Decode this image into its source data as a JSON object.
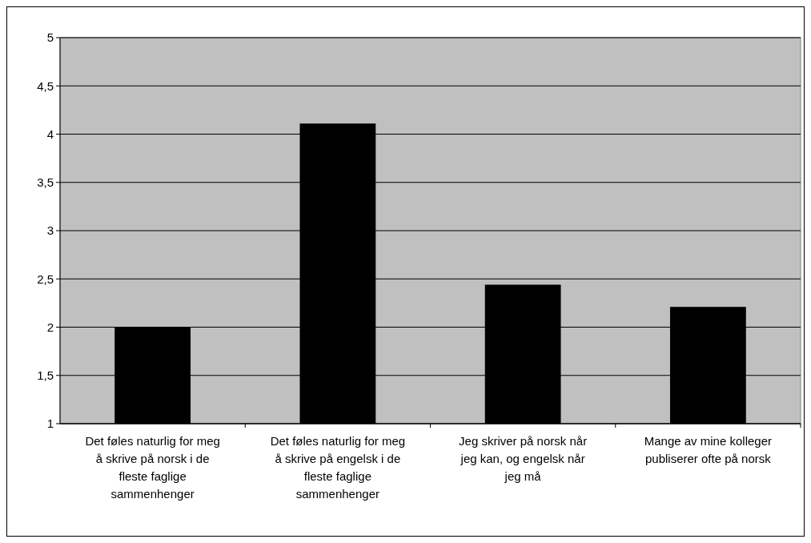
{
  "chart_data": {
    "type": "bar",
    "categories": [
      "Det føles naturlig for meg å skrive på norsk i de fleste faglige sammenhenger",
      "Det føles naturlig for meg å skrive på engelsk i de fleste faglige sammenhenger",
      "Jeg skriver på norsk når jeg kan, og engelsk når jeg må",
      "Mange av mine kolleger publiserer ofte på norsk"
    ],
    "values": [
      2.0,
      4.11,
      2.44,
      2.21
    ],
    "color": "#000000",
    "ylim": [
      1,
      5
    ],
    "yticks": [
      1,
      {
        "value": 1.5,
        "label": "1,5"
      },
      2,
      {
        "value": 2.5,
        "label": "2,5"
      },
      3,
      {
        "value": 3.5,
        "label": "3,5"
      },
      4,
      {
        "value": 4.5,
        "label": "4,5"
      },
      5
    ],
    "grid": "y"
  }
}
